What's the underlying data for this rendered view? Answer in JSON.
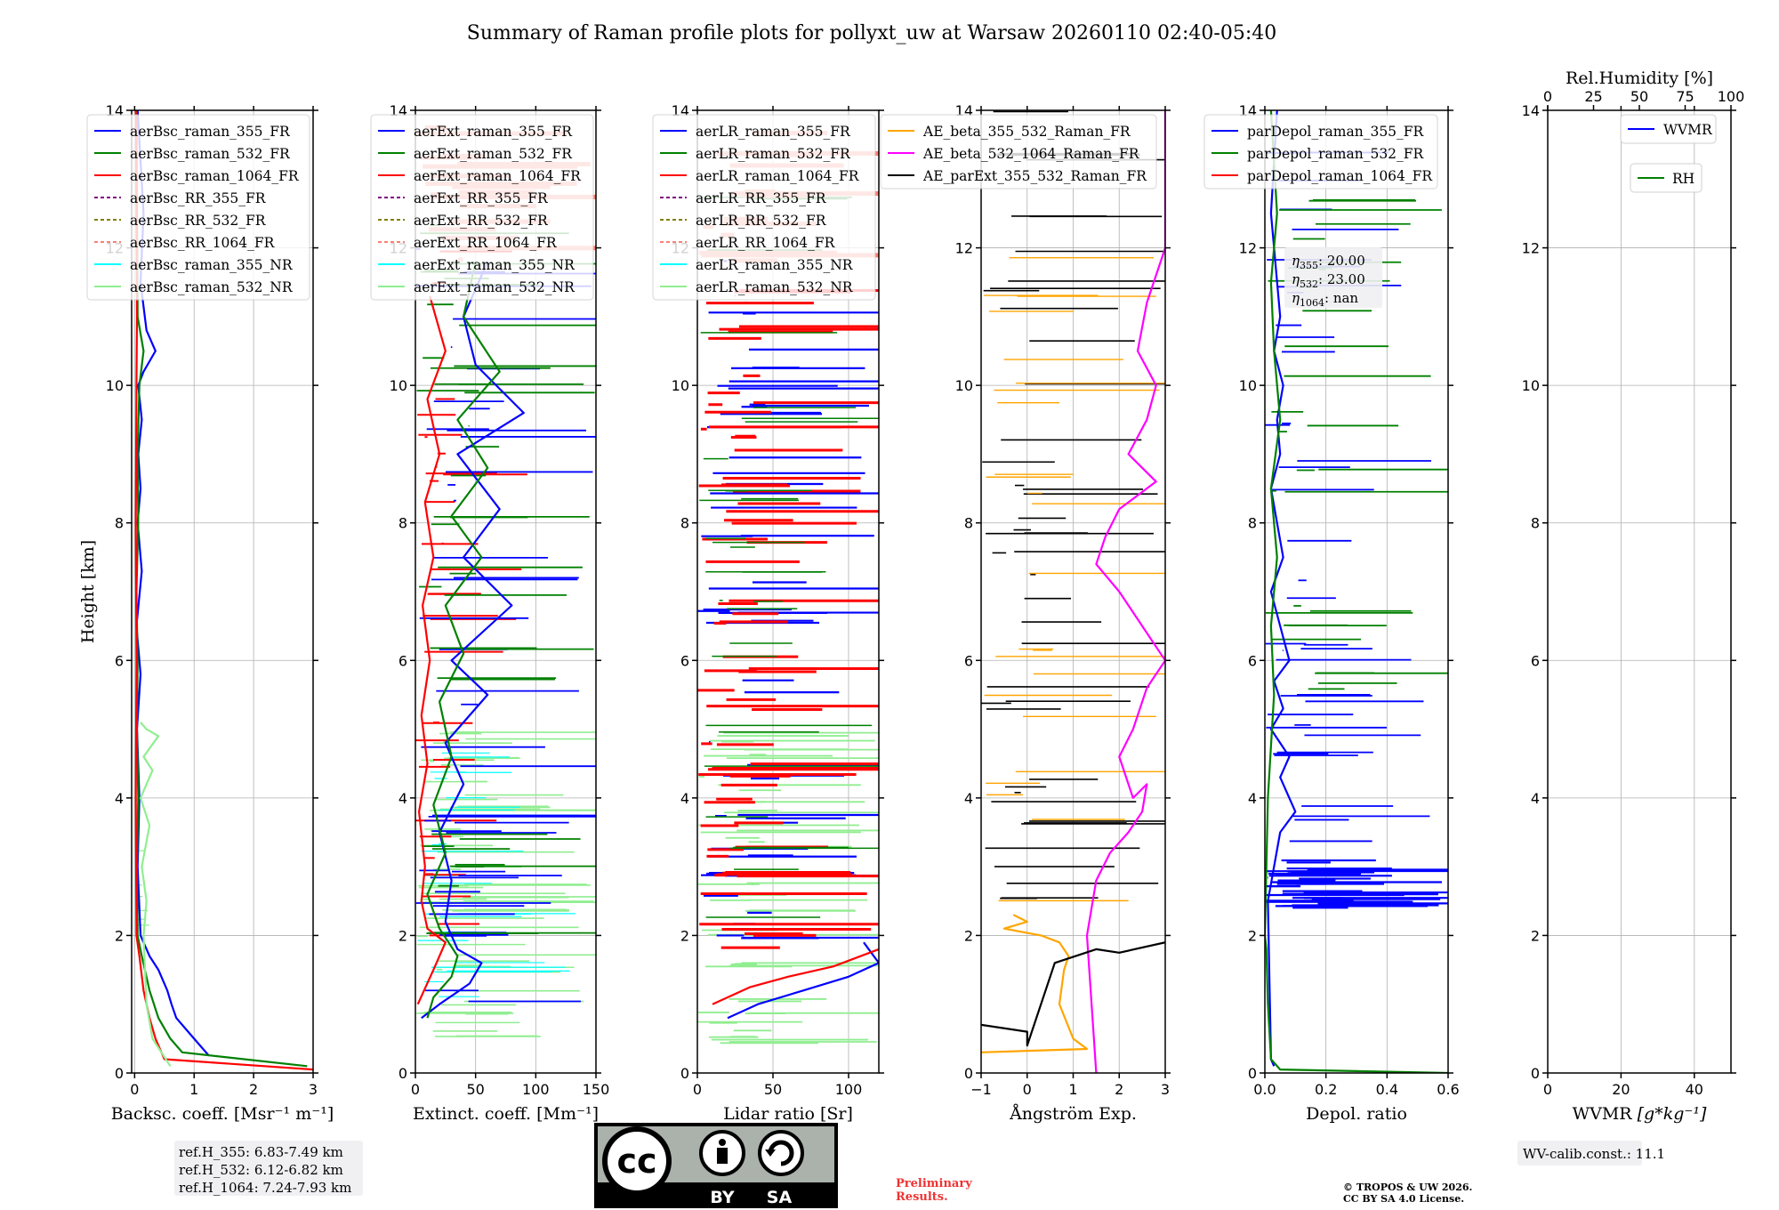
{
  "title": "Summary of Raman profile plots for pollyxt_uw at Warsaw 20260110 02:40-05:40",
  "colors": {
    "blue": "#0000ff",
    "green": "#008000",
    "red": "#ff0000",
    "purple": "#800080",
    "olive": "#808000",
    "salmon": "#fa8072",
    "cyan": "#00ffff",
    "lightgreen": "#90ee90",
    "orange": "#ffa500",
    "magenta": "#ff00ff",
    "black": "#000000"
  },
  "chart_data": [
    {
      "type": "line",
      "id": "bsc",
      "xlabel": "Backsc. coeff. [Msr⁻¹ m⁻¹]",
      "ylabel": "Height [km]",
      "xlim": [
        -0.05,
        3
      ],
      "ylim": [
        0,
        14
      ],
      "xticks": [
        "0",
        "1",
        "2",
        "3"
      ],
      "xtick_values": [
        0,
        1,
        2,
        3
      ],
      "yticks": [
        "0",
        "2",
        "4",
        "6",
        "8",
        "10",
        "12",
        "14"
      ],
      "ytick_values": [
        0,
        2,
        4,
        6,
        8,
        10,
        12,
        14
      ],
      "legend": [
        "aerBsc_raman_355_FR",
        "aerBsc_raman_532_FR",
        "aerBsc_raman_1064_FR",
        "aerBsc_RR_355_FR",
        "aerBsc_RR_532_FR",
        "aerBsc_RR_1064_FR",
        "aerBsc_raman_355_NR",
        "aerBsc_raman_532_NR"
      ],
      "legend_colors": [
        "blue",
        "green",
        "red",
        "purple",
        "olive",
        "salmon",
        "cyan",
        "lightgreen"
      ],
      "legend_dashed": [
        false,
        false,
        false,
        true,
        true,
        true,
        false,
        false
      ],
      "series": [
        {
          "name": "aerBsc_raman_355_FR",
          "color": "blue",
          "x": [
            1.25,
            1.1,
            0.9,
            0.7,
            0.62,
            0.55,
            0.4,
            0.25,
            0.1,
            0.05,
            0.08,
            0.04,
            0.1,
            0.03,
            0.12,
            0.05,
            0.1,
            0.06,
            0.12,
            0.06,
            0.15,
            0.35,
            0.2,
            0.1,
            0.15,
            0.05
          ],
          "y": [
            0.25,
            0.4,
            0.6,
            0.8,
            1.0,
            1.2,
            1.5,
            1.7,
            2.0,
            3.0,
            4.0,
            5.0,
            5.8,
            6.5,
            7.3,
            8.0,
            8.5,
            9.0,
            9.5,
            10.0,
            10.2,
            10.5,
            10.8,
            11.5,
            12.5,
            14.0
          ]
        },
        {
          "name": "aerBsc_raman_532_FR",
          "color": "green",
          "x": [
            2.9,
            0.8,
            0.6,
            0.4,
            0.25,
            0.12,
            0.05,
            0.04,
            0.06,
            0.04,
            0.05,
            0.03,
            0.06,
            0.05,
            0.08,
            0.15,
            0.05,
            0.03
          ],
          "y": [
            0.1,
            0.3,
            0.5,
            0.8,
            1.2,
            1.7,
            2.0,
            3.0,
            4.0,
            5.0,
            6.0,
            7.0,
            8.0,
            9.0,
            10.0,
            10.5,
            11.0,
            14.0
          ]
        },
        {
          "name": "aerBsc_raman_1064_FR",
          "color": "red",
          "x": [
            3.0,
            0.5,
            0.35,
            0.25,
            0.15,
            0.08,
            0.03,
            0.02,
            0.03,
            0.02,
            0.03,
            0.04,
            0.02
          ],
          "y": [
            0.05,
            0.2,
            0.5,
            0.8,
            1.2,
            1.7,
            2.0,
            4.0,
            6.0,
            8.0,
            10.0,
            11.0,
            14.0
          ]
        },
        {
          "name": "aerBsc_raman_532_NR",
          "color": "lightgreen",
          "x": [
            0.6,
            0.3,
            0.2,
            0.15,
            0.2,
            0.12,
            0.25,
            0.1,
            0.3,
            0.15,
            0.4,
            0.2,
            0.1
          ],
          "y": [
            0.1,
            0.5,
            1.0,
            2.0,
            2.5,
            3.0,
            3.6,
            4.0,
            4.4,
            4.6,
            4.9,
            5.0,
            5.1
          ]
        }
      ]
    },
    {
      "type": "line",
      "id": "ext",
      "xlabel": "Extinct. coeff. [Mm⁻¹]",
      "xlim": [
        0,
        150
      ],
      "ylim": [
        0,
        14
      ],
      "xticks": [
        "0",
        "50",
        "100",
        "150"
      ],
      "xtick_values": [
        0,
        50,
        100,
        150
      ],
      "yticks": [
        "0",
        "2",
        "4",
        "6",
        "8",
        "10",
        "12",
        "14"
      ],
      "ytick_values": [
        0,
        2,
        4,
        6,
        8,
        10,
        12,
        14
      ],
      "legend": [
        "aerExt_raman_355_FR",
        "aerExt_raman_532_FR",
        "aerExt_raman_1064_FR",
        "aerExt_RR_355_FR",
        "aerExt_RR_532_FR",
        "aerExt_RR_1064_FR",
        "aerExt_raman_355_NR",
        "aerExt_raman_532_NR"
      ],
      "legend_colors": [
        "blue",
        "green",
        "red",
        "purple",
        "olive",
        "salmon",
        "cyan",
        "lightgreen"
      ],
      "legend_dashed": [
        false,
        false,
        false,
        true,
        true,
        true,
        false,
        false
      ],
      "series": [
        {
          "name": "aerExt_raman_355_FR",
          "color": "blue",
          "x": [
            5,
            20,
            45,
            55,
            35,
            25,
            30,
            20,
            40,
            25,
            60,
            30,
            80,
            40,
            70,
            35,
            90,
            50,
            40,
            60
          ],
          "y": [
            0.8,
            1.0,
            1.3,
            1.6,
            1.8,
            2.2,
            2.8,
            3.5,
            4.2,
            4.8,
            5.5,
            6.0,
            6.8,
            7.5,
            8.2,
            9.0,
            9.6,
            10.3,
            11.0,
            11.8
          ]
        },
        {
          "name": "aerExt_raman_532_FR",
          "color": "green",
          "x": [
            10,
            15,
            30,
            35,
            20,
            10,
            25,
            15,
            30,
            20,
            40,
            25,
            55,
            30,
            60,
            35,
            70,
            40,
            50
          ],
          "y": [
            0.8,
            1.1,
            1.4,
            1.7,
            2.1,
            2.6,
            3.2,
            3.9,
            4.6,
            5.4,
            6.1,
            6.8,
            7.5,
            8.1,
            8.8,
            9.5,
            10.2,
            11.0,
            11.8
          ]
        },
        {
          "name": "aerExt_raman_1064_FR",
          "color": "red",
          "x": [
            2,
            15,
            25,
            10,
            5,
            8,
            3,
            10,
            5,
            12,
            6,
            15,
            8,
            20,
            10,
            25,
            12
          ],
          "y": [
            1.0,
            1.5,
            1.9,
            2.1,
            2.5,
            3.0,
            3.8,
            4.5,
            5.2,
            6.0,
            6.8,
            7.5,
            8.3,
            9.0,
            9.8,
            10.5,
            11.3
          ]
        }
      ]
    },
    {
      "type": "line",
      "id": "lr",
      "xlabel": "Lidar ratio [Sr]",
      "xlim": [
        0,
        120
      ],
      "ylim": [
        0,
        14
      ],
      "xticks": [
        "0",
        "50",
        "100"
      ],
      "xtick_values": [
        0,
        50,
        100
      ],
      "yticks": [
        "0",
        "2",
        "4",
        "6",
        "8",
        "10",
        "12",
        "14"
      ],
      "ytick_values": [
        0,
        2,
        4,
        6,
        8,
        10,
        12,
        14
      ],
      "legend": [
        "aerLR_raman_355_FR",
        "aerLR_raman_532_FR",
        "aerLR_raman_1064_FR",
        "aerLR_RR_355_FR",
        "aerLR_RR_532_FR",
        "aerLR_RR_1064_FR",
        "aerLR_raman_355_NR",
        "aerLR_raman_532_NR"
      ],
      "legend_colors": [
        "blue",
        "green",
        "red",
        "purple",
        "olive",
        "salmon",
        "cyan",
        "lightgreen"
      ],
      "legend_dashed": [
        false,
        false,
        false,
        true,
        true,
        true,
        false,
        false
      ],
      "series": [
        {
          "name": "aerLR_raman_355_FR",
          "color": "blue",
          "x": [
            20,
            40,
            70,
            100,
            120,
            110
          ],
          "y": [
            0.8,
            1.0,
            1.2,
            1.4,
            1.6,
            1.9
          ]
        },
        {
          "name": "aerLR_raman_1064_FR",
          "color": "red",
          "x": [
            10,
            20,
            35,
            60,
            90,
            120
          ],
          "y": [
            1.0,
            1.1,
            1.25,
            1.4,
            1.55,
            1.8
          ]
        }
      ]
    },
    {
      "type": "line",
      "id": "ae",
      "xlabel": "Ångström Exp.",
      "xlim": [
        -1,
        3
      ],
      "ylim": [
        0,
        14
      ],
      "xticks": [
        "−1",
        "0",
        "1",
        "2",
        "3"
      ],
      "xtick_values": [
        -1,
        0,
        1,
        2,
        3
      ],
      "yticks": [
        "0",
        "2",
        "4",
        "6",
        "8",
        "10",
        "12",
        "14"
      ],
      "ytick_values": [
        0,
        2,
        4,
        6,
        8,
        10,
        12,
        14
      ],
      "legend": [
        "AE_beta_355_532_Raman_FR",
        "AE_beta_532_1064_Raman_FR",
        "AE_parExt_355_532_Raman_FR"
      ],
      "legend_colors": [
        "orange",
        "magenta",
        "black"
      ],
      "legend_dashed": [
        false,
        false,
        false
      ],
      "series": [
        {
          "name": "AE_beta_355_532_Raman_FR",
          "color": "orange",
          "x": [
            -1.0,
            1.3,
            1.0,
            0.7,
            0.8,
            0.9,
            0.7,
            0.3,
            -0.5,
            0.0,
            -0.3
          ],
          "y": [
            0.3,
            0.35,
            0.5,
            1.0,
            1.5,
            1.7,
            1.9,
            2.0,
            2.1,
            2.2,
            2.3
          ]
        },
        {
          "name": "AE_beta_532_1064_Raman_FR",
          "color": "magenta",
          "x": [
            1.5,
            1.4,
            1.3,
            1.5,
            1.8,
            2.2,
            2.5,
            2.6,
            2.3,
            2.0,
            2.3,
            2.6,
            3.0,
            2.5,
            2.0,
            1.5,
            1.7,
            2.0,
            2.8,
            2.2,
            2.6,
            2.8,
            2.4,
            2.6,
            3.0,
            3.0
          ],
          "y": [
            0.0,
            1.0,
            2.0,
            2.8,
            3.2,
            3.5,
            3.8,
            4.2,
            4.0,
            4.6,
            5.0,
            5.6,
            6.0,
            6.5,
            7.0,
            7.4,
            7.8,
            8.2,
            8.6,
            9.0,
            9.5,
            10.0,
            10.5,
            11.2,
            12.0,
            14.0
          ]
        },
        {
          "name": "AE_parExt_355_532_Raman_FR",
          "color": "black",
          "x": [
            -1.0,
            0.0,
            0.0,
            0.6,
            1.5,
            2.0,
            3.0
          ],
          "y": [
            0.7,
            0.6,
            0.4,
            1.6,
            1.8,
            1.75,
            1.9
          ]
        }
      ]
    },
    {
      "type": "line",
      "id": "depol",
      "xlabel": "Depol. ratio",
      "xlim": [
        0,
        0.6
      ],
      "ylim": [
        0,
        14
      ],
      "xticks": [
        "0.0",
        "0.2",
        "0.4",
        "0.6"
      ],
      "xtick_values": [
        0,
        0.2,
        0.4,
        0.6
      ],
      "yticks": [
        "0",
        "2",
        "4",
        "6",
        "8",
        "10",
        "12",
        "14"
      ],
      "ytick_values": [
        0,
        2,
        4,
        6,
        8,
        10,
        12,
        14
      ],
      "legend": [
        "parDepol_raman_355_FR",
        "parDepol_raman_532_FR",
        "parDepol_raman_1064_FR"
      ],
      "legend_colors": [
        "blue",
        "green",
        "red"
      ],
      "legend_dashed": [
        false,
        false,
        false
      ],
      "annotations": [
        {
          "sym": "η",
          "sub": "355",
          "val": ": 20.00"
        },
        {
          "sym": "η",
          "sub": "532",
          "val": ": 23.00"
        },
        {
          "sym": "η",
          "sub": "1064",
          "val": ": nan"
        }
      ],
      "series": [
        {
          "name": "parDepol_raman_355_FR",
          "color": "blue",
          "x": [
            0.03,
            0.02,
            0.01,
            0.05,
            0.1,
            0.05,
            0.08,
            0.02,
            0.06,
            0.03,
            0.08,
            0.05,
            0.02,
            0.06,
            0.04,
            0.02,
            0.05,
            0.04,
            0.06,
            0.03,
            0.05,
            0.02,
            0.04
          ],
          "y": [
            0.1,
            0.2,
            2.5,
            3.5,
            3.8,
            4.3,
            4.6,
            5.0,
            5.3,
            5.7,
            6.0,
            6.5,
            7.0,
            7.5,
            8.0,
            8.5,
            9.0,
            9.5,
            10.0,
            10.5,
            11.0,
            12.5,
            14.0
          ]
        },
        {
          "name": "parDepol_raman_532_FR",
          "color": "green",
          "x": [
            0.6,
            0.05,
            0.02,
            0.01,
            0.005,
            0.0,
            0.01,
            0.03,
            0.02,
            0.04,
            0.02,
            0.05,
            0.03,
            0.02,
            0.04,
            0.02
          ],
          "y": [
            0.0,
            0.05,
            0.2,
            1.0,
            1.8,
            2.0,
            4.0,
            5.5,
            6.5,
            7.5,
            8.5,
            9.5,
            10.5,
            11.5,
            12.5,
            14.0
          ]
        }
      ]
    },
    {
      "type": "line",
      "id": "wv",
      "xlabel": "WVMR [g*kg⁻¹]",
      "xlabel_prefix": "WVMR ",
      "xlabel_unit": "[g*kg⁻¹]",
      "top_xlabel": "Rel.Humidity [%]",
      "xlim": [
        0,
        50
      ],
      "ylim": [
        0,
        14
      ],
      "xticks": [
        "0",
        "20",
        "40"
      ],
      "xtick_values": [
        0,
        20,
        40
      ],
      "top_xticks": [
        "0",
        "25",
        "50",
        "75",
        "100"
      ],
      "top_xtick_values": [
        0,
        25,
        50,
        75,
        100
      ],
      "yticks": [
        "0",
        "2",
        "4",
        "6",
        "8",
        "10",
        "12",
        "14"
      ],
      "ytick_values": [
        0,
        2,
        4,
        6,
        8,
        10,
        12,
        14
      ],
      "legend": [
        "WVMR",
        "RH"
      ],
      "legend_colors": [
        "blue",
        "green"
      ],
      "series": []
    }
  ],
  "ref_box": [
    "ref.H_355: 6.83-7.49 km",
    "ref.H_532: 6.12-6.82 km",
    "ref.H_1064: 7.24-7.93 km"
  ],
  "wv_calib": "WV-calib.const.: 11.1",
  "license_badge": {
    "cc": "cc",
    "by": "BY",
    "sa": "SA"
  },
  "preliminary": [
    "Preliminary",
    "Results."
  ],
  "copyright": [
    "© TROPOS & UW 2026.",
    "CC BY SA 4.0 License."
  ]
}
